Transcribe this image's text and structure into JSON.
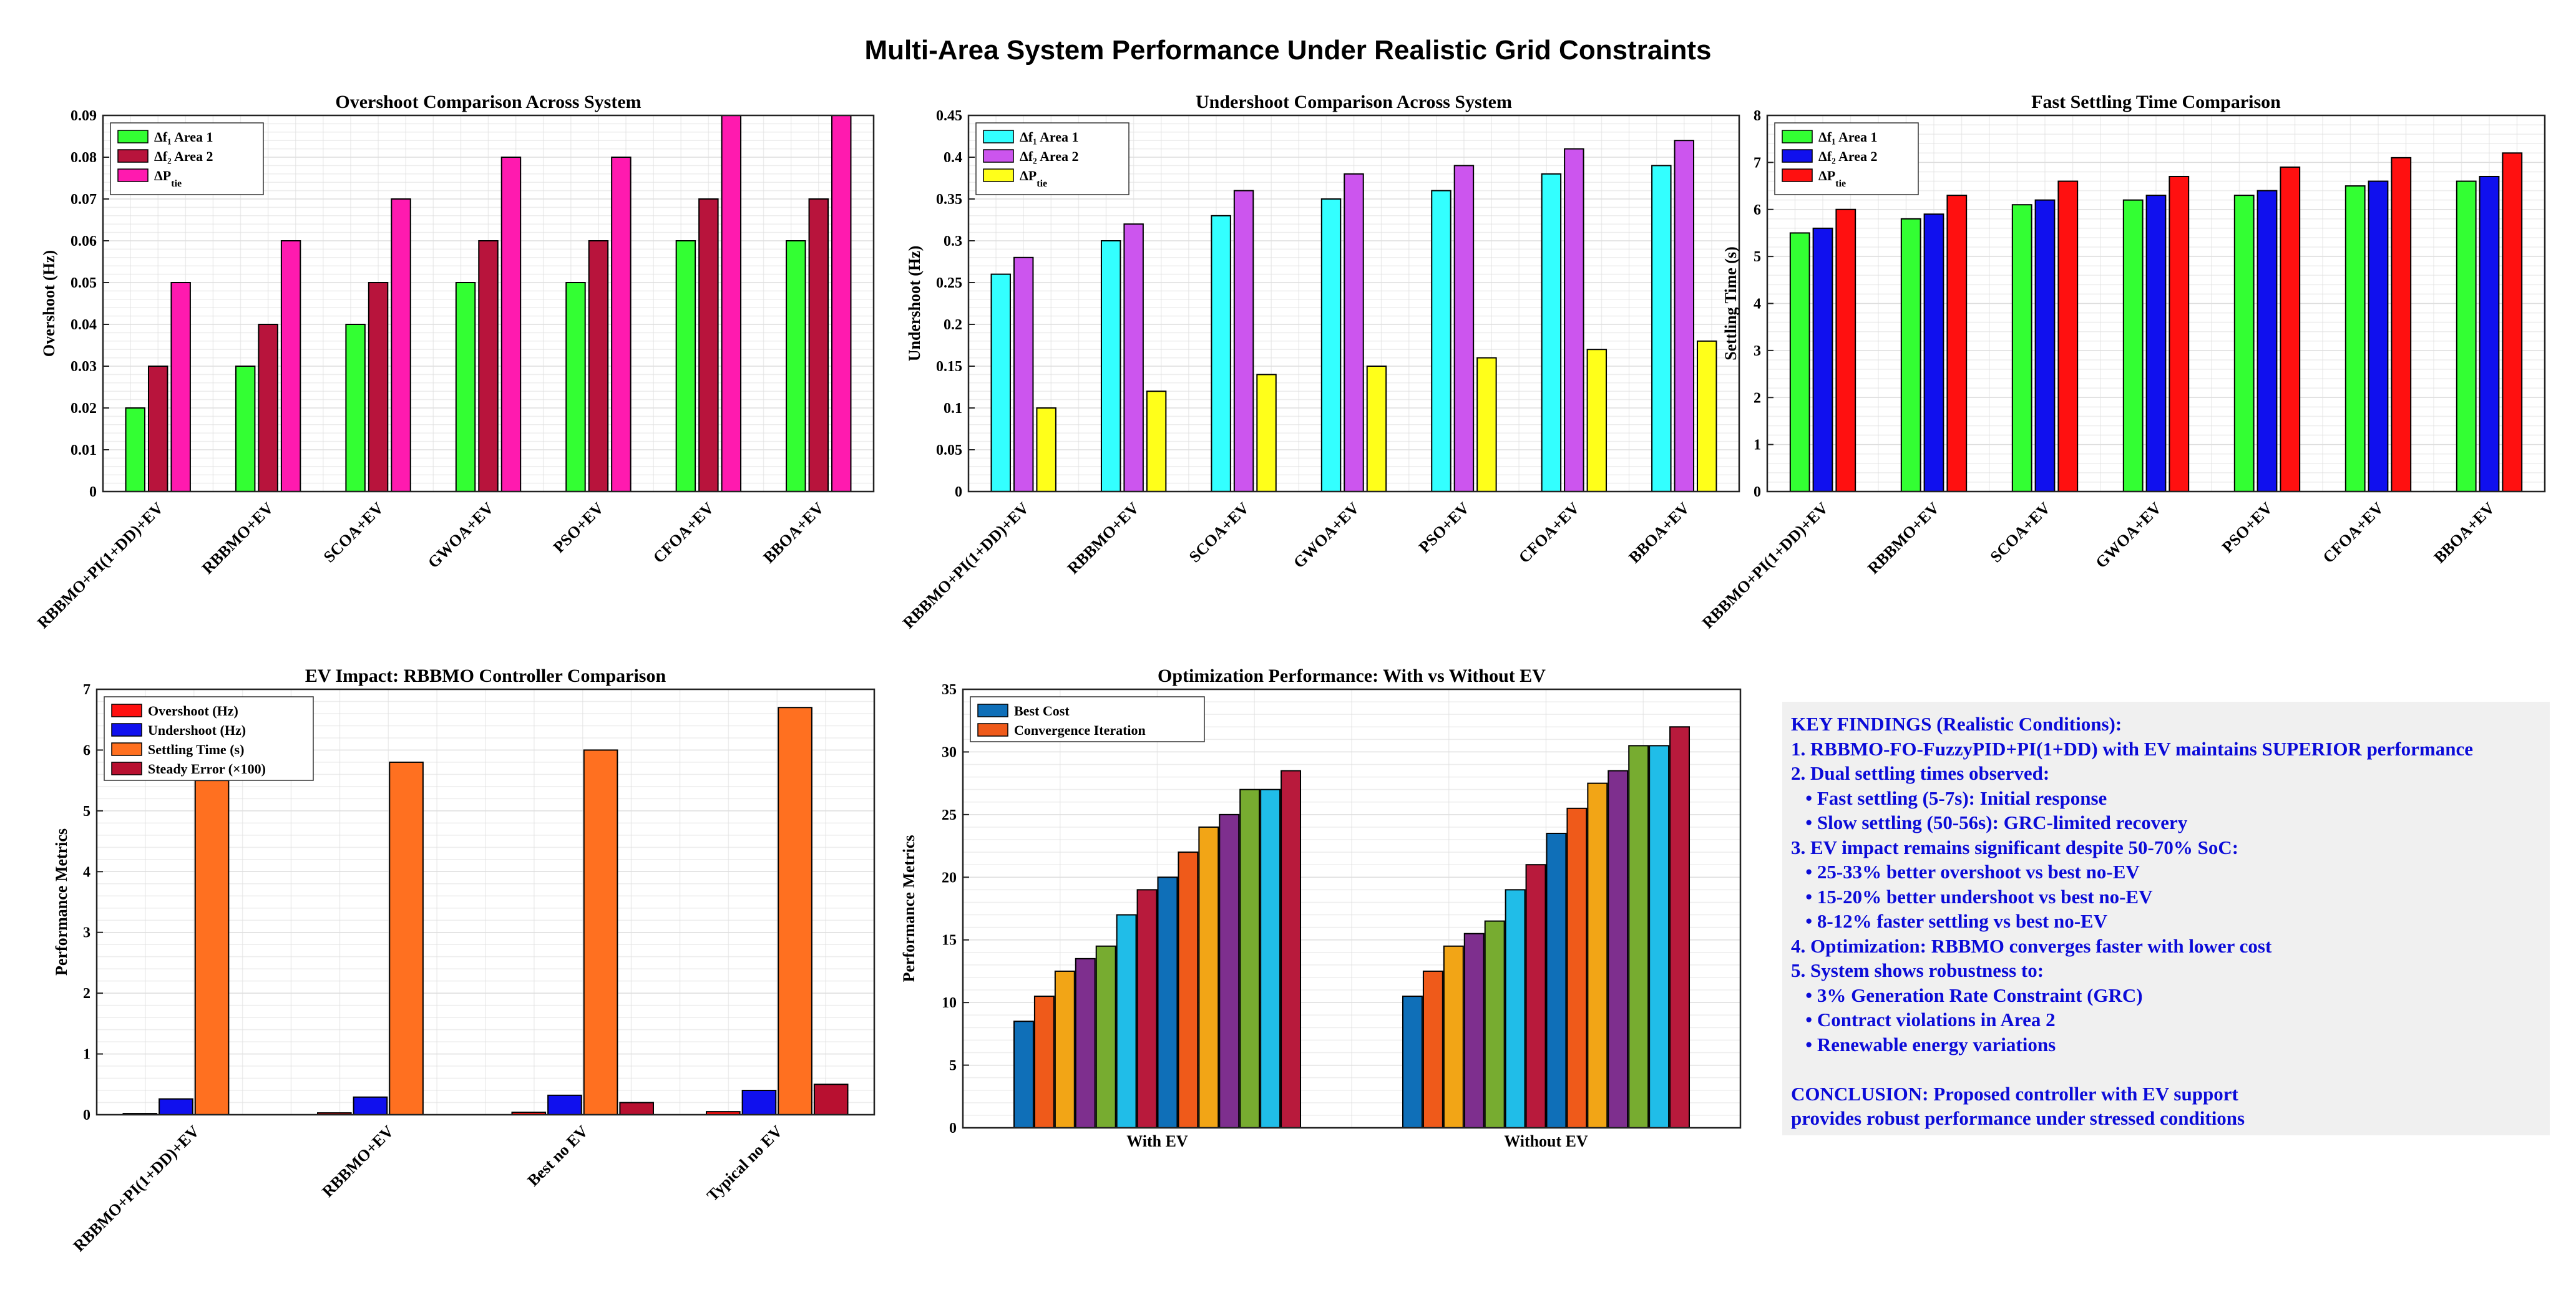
{
  "figure": {
    "title": "Multi-Area System Performance Under Realistic Grid Constraints"
  },
  "colors": {
    "green": "#33ff33",
    "crimson": "#b8143c",
    "magenta": "#ff1aaf",
    "cyan": "#33ffff",
    "violet": "#cc55ee",
    "yellow": "#ffff1a",
    "blue": "#1010ee",
    "red": "#ff1010",
    "orange": "#ff7020",
    "darkred": "#b81030"
  },
  "chart_data": [
    {
      "id": "overshoot",
      "type": "bar",
      "title": "Overshoot Comparison Across System",
      "ylabel": "Overshoot (Hz)",
      "xlabel": "",
      "categories": [
        "RBBMO+PI(1+DD)+EV",
        "RBBMO+EV",
        "SCOA+EV",
        "GWOA+EV",
        "PSO+EV",
        "CFOA+EV",
        "BBOA+EV"
      ],
      "series": [
        {
          "name": "Δf₁ Area 1",
          "color": "#33ff33",
          "values": [
            0.02,
            0.03,
            0.04,
            0.05,
            0.05,
            0.06,
            0.06
          ]
        },
        {
          "name": "Δf₂ Area 2",
          "color": "#b8143c",
          "values": [
            0.03,
            0.04,
            0.05,
            0.06,
            0.06,
            0.07,
            0.07
          ]
        },
        {
          "name": "ΔP",
          "sub": "tie",
          "color": "#ff1aaf",
          "values": [
            0.05,
            0.06,
            0.07,
            0.08,
            0.08,
            0.09,
            0.09
          ]
        }
      ],
      "ylim": [
        0,
        0.09
      ],
      "yticks": [
        "0",
        "0.01",
        "0.02",
        "0.03",
        "0.04",
        "0.05",
        "0.06",
        "0.07",
        "0.08",
        "0.09"
      ],
      "legend": "top-left",
      "grid": true
    },
    {
      "id": "undershoot",
      "type": "bar",
      "title": "Undershoot Comparison Across System",
      "ylabel": "Undershoot (Hz)",
      "xlabel": "",
      "categories": [
        "RBBMO+PI(1+DD)+EV",
        "RBBMO+EV",
        "SCOA+EV",
        "GWOA+EV",
        "PSO+EV",
        "CFOA+EV",
        "BBOA+EV"
      ],
      "series": [
        {
          "name": "Δf₁ Area 1",
          "color": "#33ffff",
          "values": [
            0.26,
            0.3,
            0.33,
            0.35,
            0.36,
            0.38,
            0.39
          ]
        },
        {
          "name": "Δf₂ Area 2",
          "color": "#cc55ee",
          "values": [
            0.28,
            0.32,
            0.36,
            0.38,
            0.39,
            0.41,
            0.42
          ]
        },
        {
          "name": "ΔP",
          "sub": "tie",
          "color": "#ffff1a",
          "values": [
            0.1,
            0.12,
            0.14,
            0.15,
            0.16,
            0.17,
            0.18
          ]
        }
      ],
      "ylim": [
        0,
        0.45
      ],
      "yticks": [
        "0",
        "0.05",
        "0.1",
        "0.15",
        "0.2",
        "0.25",
        "0.3",
        "0.35",
        "0.4",
        "0.45"
      ],
      "legend": "top-left",
      "grid": true
    },
    {
      "id": "settling",
      "type": "bar",
      "title": "Fast Settling Time Comparison",
      "ylabel": "Settling Time (s)",
      "xlabel": "",
      "categories": [
        "RBBMO+PI(1+DD)+EV",
        "RBBMO+EV",
        "SCOA+EV",
        "GWOA+EV",
        "PSO+EV",
        "CFOA+EV",
        "BBOA+EV"
      ],
      "series": [
        {
          "name": "Δf₁ Area 1",
          "color": "#33ff33",
          "values": [
            5.5,
            5.8,
            6.1,
            6.2,
            6.3,
            6.5,
            6.6
          ]
        },
        {
          "name": "Δf₂ Area 2",
          "color": "#1010ee",
          "values": [
            5.6,
            5.9,
            6.2,
            6.3,
            6.4,
            6.6,
            6.7
          ]
        },
        {
          "name": "ΔP",
          "sub": "tie",
          "color": "#ff1010",
          "values": [
            6.0,
            6.3,
            6.6,
            6.7,
            6.9,
            7.1,
            7.2
          ]
        }
      ],
      "ylim": [
        0,
        8
      ],
      "yticks": [
        "0",
        "1",
        "2",
        "3",
        "4",
        "5",
        "6",
        "7",
        "8"
      ],
      "legend": "top-left",
      "grid": true
    },
    {
      "id": "evimpact",
      "type": "bar",
      "title": "EV Impact: RBBMO Controller Comparison",
      "ylabel": "Performance Metrics",
      "xlabel": "",
      "categories": [
        "RBBMO+PI(1+DD)+EV",
        "RBBMO+EV",
        "Best no EV",
        "Typical no EV"
      ],
      "series": [
        {
          "name": "Overshoot (Hz)",
          "color": "#ff1010",
          "values": [
            0.02,
            0.03,
            0.04,
            0.05
          ]
        },
        {
          "name": "Undershoot (Hz)",
          "color": "#1010ee",
          "values": [
            0.26,
            0.29,
            0.32,
            0.4
          ]
        },
        {
          "name": "Settling Time (s)",
          "color": "#ff7020",
          "values": [
            5.5,
            5.8,
            6.0,
            6.7
          ]
        },
        {
          "name": "Steady Error (×100)",
          "color": "#b81030",
          "values": [
            0.0,
            0.0,
            0.2,
            0.5
          ]
        }
      ],
      "ylim": [
        0,
        7
      ],
      "yticks": [
        "0",
        "1",
        "2",
        "3",
        "4",
        "5",
        "6",
        "7"
      ],
      "legend": "top-left",
      "grid": true
    },
    {
      "id": "optimization",
      "type": "bar",
      "title": "Optimization Performance: With vs Without EV",
      "ylabel": "Performance Metrics",
      "xlabel": "",
      "categories": [
        "With EV",
        "Without EV"
      ],
      "legend_entries": [
        {
          "name": "Best Cost",
          "color": "#0f6fb8"
        },
        {
          "name": "Convergence Iteration",
          "color": "#ef5a1a"
        }
      ],
      "bar_colors": [
        "#0f6fb8",
        "#ef5a1a",
        "#f2a516",
        "#7e2f8e",
        "#77ac30",
        "#20bde8",
        "#b81a3c"
      ],
      "groups": [
        [
          8.5,
          10.5,
          12.5,
          13.5,
          14.5,
          17.0,
          19.0,
          20.0,
          22.0,
          24.0,
          25.0,
          27.0,
          27.0,
          28.5
        ],
        [
          10.5,
          12.5,
          14.5,
          15.5,
          16.5,
          19.0,
          21.0,
          23.5,
          25.5,
          27.5,
          28.5,
          30.5,
          30.5,
          32.0
        ]
      ],
      "ylim": [
        0,
        35
      ],
      "yticks": [
        "0",
        "5",
        "10",
        "15",
        "20",
        "25",
        "30",
        "35"
      ],
      "legend": "top-left",
      "grid": true
    }
  ],
  "findings": {
    "title": "KEY FINDINGS (Realistic Conditions):",
    "lines": [
      "1. RBBMO-FO-FuzzyPID+PI(1+DD) with EV maintains SUPERIOR performance",
      "2. Dual settling times observed:",
      "   • Fast settling (5-7s): Initial response",
      "   • Slow settling (50-56s): GRC-limited recovery",
      "3. EV impact remains significant despite 50-70% SoC:",
      "   • 25-33% better overshoot vs best no-EV",
      "   • 15-20% better undershoot vs best no-EV",
      "   • 8-12% faster settling vs best no-EV",
      "4. Optimization: RBBMO converges faster with lower cost",
      "5. System shows robustness to:",
      "   • 3% Generation Rate Constraint (GRC)",
      "   • Contract violations in Area 2",
      "   • Renewable energy variations"
    ],
    "conclusion_1": "CONCLUSION: Proposed controller with EV support",
    "conclusion_2": "provides robust performance under stressed conditions"
  }
}
